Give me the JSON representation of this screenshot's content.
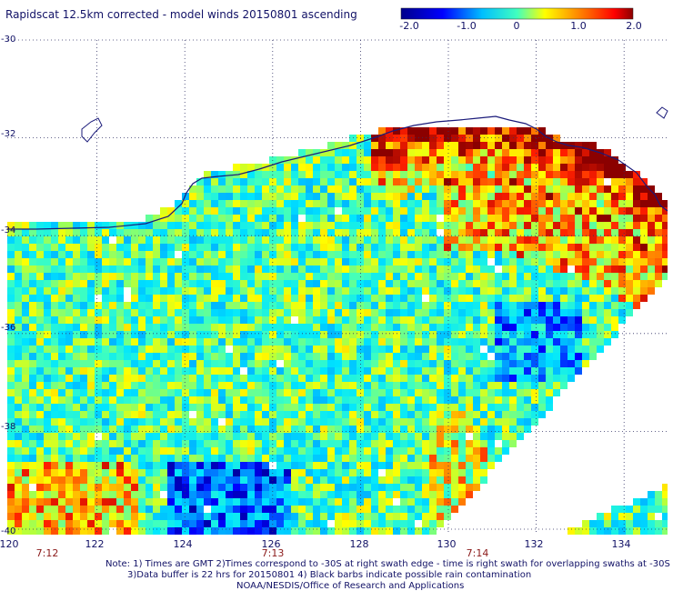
{
  "title": "Rapidscat 12.5km corrected - model winds 20150801 ascending",
  "colorbar": {
    "ticks": [
      {
        "label": "-2.0",
        "value": -2.0
      },
      {
        "label": "-1.0",
        "value": -1.0
      },
      {
        "label": "0",
        "value": 0
      },
      {
        "label": "1.0",
        "value": 1.0
      },
      {
        "label": "2.0",
        "value": 2.0
      }
    ],
    "range": [
      -2.0,
      2.0
    ]
  },
  "map": {
    "lat_labels": [
      "-30",
      "-32",
      "-34",
      "-36",
      "-38",
      "-40"
    ],
    "lon_labels": [
      "120",
      "122",
      "124",
      "126",
      "128",
      "130",
      "132",
      "134"
    ],
    "time_labels": [
      "7:12",
      "7:13",
      "7:14"
    ],
    "lat_range": [
      -40,
      -30
    ],
    "lon_range": [
      120,
      135
    ],
    "grid": true,
    "coastline_color": "#1a1a7a",
    "grid_color": "#333366"
  },
  "notes": {
    "line1": "Note: 1) Times are GMT 2)Times correspond to -30S at right swath edge - time is right swath for overlapping swaths at -30S",
    "line2": "3)Data buffer is 22 hrs for 20150801 4) Black barbs indicate possible rain contamination",
    "line3": "NOAA/NESDIS/Office of Research and Applications"
  }
}
